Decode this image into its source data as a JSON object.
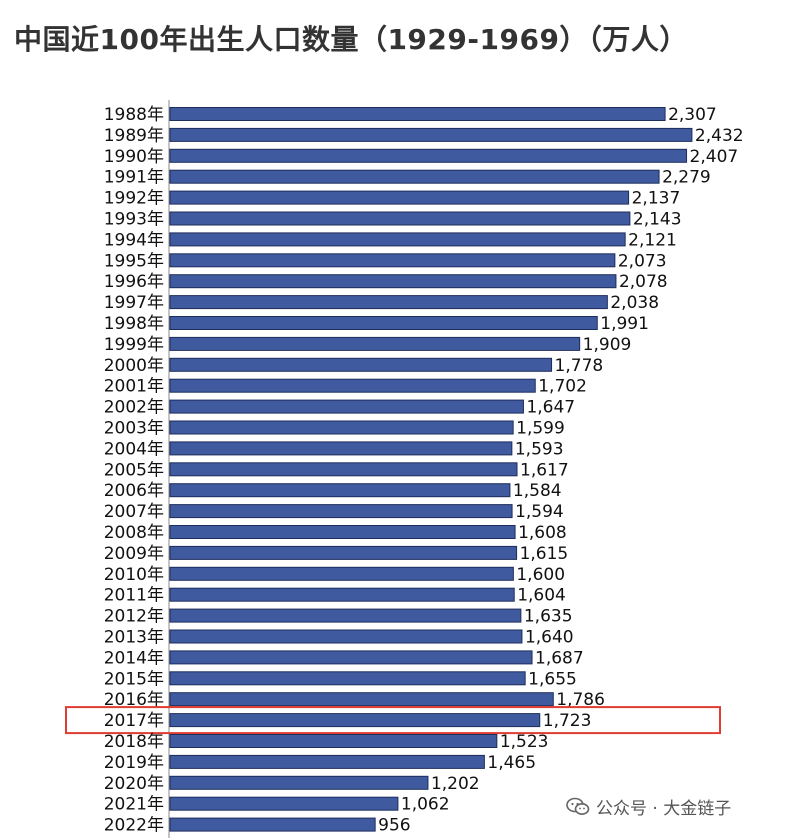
{
  "chart_data": {
    "type": "bar",
    "orientation": "horizontal",
    "title": "中国近100年出生人口数量（1929-1969）（万人）",
    "categories": [
      "1988年",
      "1989年",
      "1990年",
      "1991年",
      "1992年",
      "1993年",
      "1994年",
      "1995年",
      "1996年",
      "1997年",
      "1998年",
      "1999年",
      "2000年",
      "2001年",
      "2002年",
      "2003年",
      "2004年",
      "2005年",
      "2006年",
      "2007年",
      "2008年",
      "2009年",
      "2010年",
      "2011年",
      "2012年",
      "2013年",
      "2014年",
      "2015年",
      "2016年",
      "2017年",
      "2018年",
      "2019年",
      "2020年",
      "2021年",
      "2022年"
    ],
    "values": [
      2307,
      2432,
      2407,
      2279,
      2137,
      2143,
      2121,
      2073,
      2078,
      2038,
      1991,
      1909,
      1778,
      1702,
      1647,
      1599,
      1593,
      1617,
      1584,
      1594,
      1608,
      1615,
      1600,
      1604,
      1635,
      1640,
      1687,
      1655,
      1786,
      1723,
      1523,
      1465,
      1202,
      1062,
      956
    ],
    "value_labels": [
      "2,307",
      "2,432",
      "2,407",
      "2,279",
      "2,137",
      "2,143",
      "2,121",
      "2,073",
      "2,078",
      "2,038",
      "1,991",
      "1,909",
      "1,778",
      "1,702",
      "1,647",
      "1,599",
      "1,593",
      "1,617",
      "1,584",
      "1,594",
      "1,608",
      "1,615",
      "1,600",
      "1,604",
      "1,635",
      "1,640",
      "1,687",
      "1,655",
      "1,786",
      "1,723",
      "1,523",
      "1,465",
      "1,202",
      "1,062",
      "956"
    ],
    "highlight_category": "2017年",
    "bar_color": "#3f5a9e",
    "highlight_color": "#e03c31",
    "grid": false,
    "legend": "none"
  },
  "watermark": {
    "text": "公众号 · 大金链子",
    "icon": "wechat-icon"
  }
}
